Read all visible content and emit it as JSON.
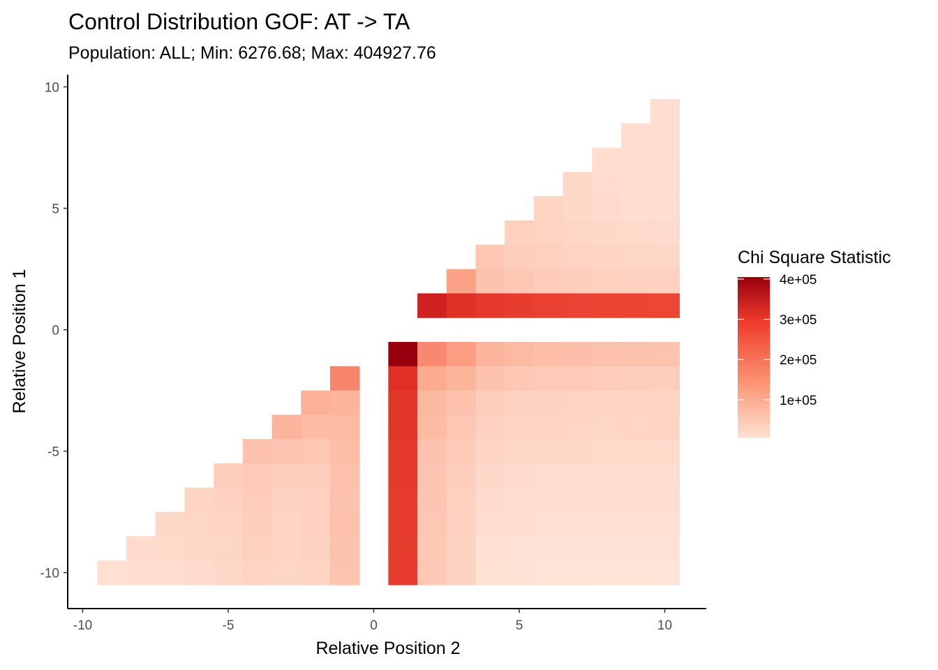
{
  "chart_data": {
    "type": "heatmap",
    "title": "Control Distribution GOF: AT -> TA",
    "subtitle": "Population: ALL; Min: 6276.68; Max: 404927.76",
    "xlabel": "Relative Position 2",
    "ylabel": "Relative Position 1",
    "xlim": [
      -10.5,
      10.5
    ],
    "ylim": [
      -10.5,
      10.5
    ],
    "x_ticks": [
      -10,
      -5,
      0,
      5,
      10
    ],
    "y_ticks": [
      -10,
      -5,
      0,
      5,
      10
    ],
    "grid": false,
    "legend": {
      "title": "Chi Square Statistic",
      "position": "right",
      "min": 6276.68,
      "max": 404927.76,
      "ticks": [
        {
          "value": 100000,
          "label": "1e+05"
        },
        {
          "value": 200000,
          "label": "2e+05"
        },
        {
          "value": 300000,
          "label": "3e+05"
        },
        {
          "value": 400000,
          "label": "4e+05"
        }
      ],
      "colors": [
        "#FEE0D2",
        "#FC9272",
        "#EF3B2C",
        "#99000D"
      ]
    },
    "x": [
      -9,
      -8,
      -7,
      -6,
      -5,
      -4,
      -3,
      -2,
      -1,
      1,
      2,
      3,
      4,
      5,
      6,
      7,
      8,
      9,
      10
    ],
    "rows": [
      {
        "y": 9,
        "cells": [
          [
            10,
            15000
          ]
        ]
      },
      {
        "y": 8,
        "cells": [
          [
            9,
            17000
          ],
          [
            10,
            15000
          ]
        ]
      },
      {
        "y": 7,
        "cells": [
          [
            8,
            18000
          ],
          [
            9,
            16000
          ],
          [
            10,
            15000
          ]
        ]
      },
      {
        "y": 6,
        "cells": [
          [
            7,
            25000
          ],
          [
            8,
            19000
          ],
          [
            9,
            17000
          ],
          [
            10,
            16000
          ]
        ]
      },
      {
        "y": 5,
        "cells": [
          [
            6,
            32000
          ],
          [
            7,
            24000
          ],
          [
            8,
            20000
          ],
          [
            9,
            18000
          ],
          [
            10,
            17000
          ]
        ]
      },
      {
        "y": 4,
        "cells": [
          [
            5,
            38000
          ],
          [
            6,
            33000
          ],
          [
            7,
            28000
          ],
          [
            8,
            25000
          ],
          [
            9,
            22000
          ],
          [
            10,
            20000
          ]
        ]
      },
      {
        "y": 3,
        "cells": [
          [
            4,
            50000
          ],
          [
            5,
            42000
          ],
          [
            6,
            38000
          ],
          [
            7,
            33000
          ],
          [
            8,
            30000
          ],
          [
            9,
            28000
          ],
          [
            10,
            27000
          ]
        ]
      },
      {
        "y": 2,
        "cells": [
          [
            3,
            110000
          ],
          [
            4,
            60000
          ],
          [
            5,
            50000
          ],
          [
            6,
            44000
          ],
          [
            7,
            40000
          ],
          [
            8,
            38000
          ],
          [
            9,
            37000
          ],
          [
            10,
            36000
          ]
        ]
      },
      {
        "y": 1,
        "cells": [
          [
            2,
            345000
          ],
          [
            3,
            315000
          ],
          [
            4,
            295000
          ],
          [
            5,
            280000
          ],
          [
            6,
            270000
          ],
          [
            7,
            262000
          ],
          [
            8,
            258000
          ],
          [
            9,
            255000
          ],
          [
            10,
            252000
          ]
        ]
      },
      {
        "y": -1,
        "cells": [
          [
            1,
            404927.76
          ],
          [
            2,
            145000
          ],
          [
            3,
            115000
          ],
          [
            4,
            80000
          ],
          [
            5,
            72000
          ],
          [
            6,
            68000
          ],
          [
            7,
            64000
          ],
          [
            8,
            62000
          ],
          [
            9,
            60000
          ],
          [
            10,
            58000
          ]
        ]
      },
      {
        "y": -2,
        "cells": [
          [
            -1,
            150000
          ],
          [
            1,
            320000
          ],
          [
            2,
            95000
          ],
          [
            3,
            82000
          ],
          [
            4,
            60000
          ],
          [
            5,
            52000
          ],
          [
            6,
            48000
          ],
          [
            7,
            46000
          ],
          [
            8,
            44000
          ],
          [
            9,
            42000
          ],
          [
            10,
            40000
          ]
        ]
      },
      {
        "y": -3,
        "cells": [
          [
            -2,
            88000
          ],
          [
            -1,
            82000
          ],
          [
            1,
            300000
          ],
          [
            2,
            75000
          ],
          [
            3,
            60000
          ],
          [
            4,
            40000
          ],
          [
            5,
            35000
          ],
          [
            6,
            34000
          ],
          [
            7,
            33000
          ],
          [
            8,
            32000
          ],
          [
            9,
            32000
          ],
          [
            10,
            31000
          ]
        ]
      },
      {
        "y": -4,
        "cells": [
          [
            -3,
            80000
          ],
          [
            -2,
            70000
          ],
          [
            -1,
            72000
          ],
          [
            1,
            300000
          ],
          [
            2,
            70000
          ],
          [
            3,
            52000
          ],
          [
            4,
            36000
          ],
          [
            5,
            32000
          ],
          [
            6,
            30000
          ],
          [
            7,
            29000
          ],
          [
            8,
            28000
          ],
          [
            9,
            29000
          ],
          [
            10,
            30000
          ]
        ]
      },
      {
        "y": -5,
        "cells": [
          [
            -4,
            60000
          ],
          [
            -3,
            55000
          ],
          [
            -2,
            52000
          ],
          [
            -1,
            66000
          ],
          [
            1,
            295000
          ],
          [
            2,
            60000
          ],
          [
            3,
            45000
          ],
          [
            4,
            30000
          ],
          [
            5,
            26000
          ],
          [
            6,
            24000
          ],
          [
            7,
            23000
          ],
          [
            8,
            22000
          ],
          [
            9,
            22000
          ],
          [
            10,
            22000
          ]
        ]
      },
      {
        "y": -6,
        "cells": [
          [
            -5,
            42000
          ],
          [
            -4,
            48000
          ],
          [
            -3,
            42000
          ],
          [
            -2,
            42000
          ],
          [
            -1,
            62000
          ],
          [
            1,
            290000
          ],
          [
            2,
            55000
          ],
          [
            3,
            40000
          ],
          [
            4,
            24000
          ],
          [
            5,
            20000
          ],
          [
            6,
            18000
          ],
          [
            7,
            18000
          ],
          [
            8,
            18000
          ],
          [
            9,
            18000
          ],
          [
            10,
            18000
          ]
        ]
      },
      {
        "y": -7,
        "cells": [
          [
            -6,
            32000
          ],
          [
            -5,
            36000
          ],
          [
            -4,
            44000
          ],
          [
            -3,
            34000
          ],
          [
            -2,
            36000
          ],
          [
            -1,
            60000
          ],
          [
            1,
            285000
          ],
          [
            2,
            55000
          ],
          [
            3,
            38000
          ],
          [
            4,
            20000
          ],
          [
            5,
            17000
          ],
          [
            6,
            15000
          ],
          [
            7,
            14000
          ],
          [
            8,
            14000
          ],
          [
            9,
            14000
          ],
          [
            10,
            14000
          ]
        ]
      },
      {
        "y": -8,
        "cells": [
          [
            -7,
            25000
          ],
          [
            -6,
            28000
          ],
          [
            -5,
            32000
          ],
          [
            -4,
            40000
          ],
          [
            -3,
            32000
          ],
          [
            -2,
            36000
          ],
          [
            -1,
            62000
          ],
          [
            1,
            285000
          ],
          [
            2,
            52000
          ],
          [
            3,
            36000
          ],
          [
            4,
            18000
          ],
          [
            5,
            15000
          ],
          [
            6,
            13000
          ],
          [
            7,
            12000
          ],
          [
            8,
            12000
          ],
          [
            9,
            12000
          ],
          [
            10,
            12000
          ]
        ]
      },
      {
        "y": -9,
        "cells": [
          [
            -8,
            20000
          ],
          [
            -7,
            22000
          ],
          [
            -6,
            24000
          ],
          [
            -5,
            28000
          ],
          [
            -4,
            38000
          ],
          [
            -3,
            30000
          ],
          [
            -2,
            34000
          ],
          [
            -1,
            60000
          ],
          [
            1,
            280000
          ],
          [
            2,
            50000
          ],
          [
            3,
            35000
          ],
          [
            4,
            12000
          ],
          [
            5,
            10000
          ],
          [
            6,
            10000
          ],
          [
            7,
            10000
          ],
          [
            8,
            10000
          ],
          [
            9,
            10000
          ],
          [
            10,
            10000
          ]
        ]
      },
      {
        "y": -10,
        "cells": [
          [
            -9,
            12000
          ],
          [
            -8,
            14000
          ],
          [
            -7,
            16000
          ],
          [
            -6,
            20000
          ],
          [
            -5,
            24000
          ],
          [
            -4,
            32000
          ],
          [
            -3,
            28000
          ],
          [
            -2,
            32000
          ],
          [
            -1,
            58000
          ],
          [
            1,
            285000
          ],
          [
            2,
            50000
          ],
          [
            3,
            34000
          ],
          [
            4,
            11000
          ],
          [
            5,
            9000
          ],
          [
            6,
            8000
          ],
          [
            7,
            7000
          ],
          [
            8,
            6500
          ],
          [
            9,
            6400
          ],
          [
            10,
            6276.68
          ]
        ]
      }
    ]
  }
}
